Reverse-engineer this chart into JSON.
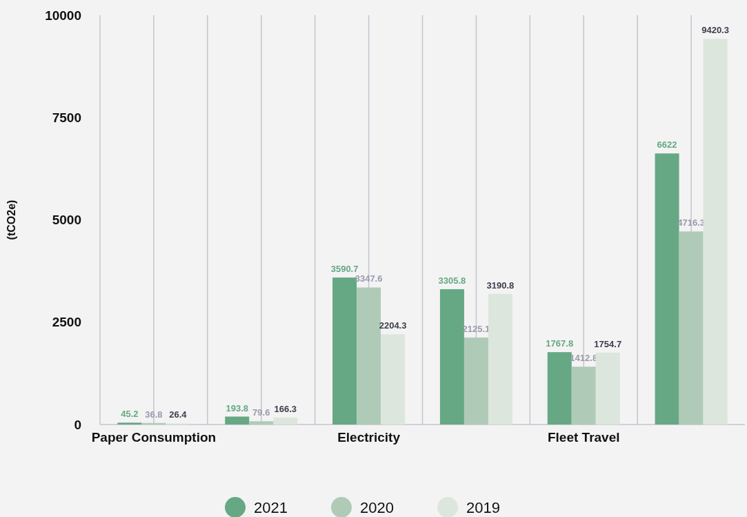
{
  "chart_data": {
    "type": "bar",
    "ylabel": "(tCO2e)",
    "categories": [
      "Paper Consumption",
      null,
      "Electricity",
      null,
      "Fleet Travel",
      null
    ],
    "series": [
      {
        "name": "2021",
        "color": "#66a884",
        "values": [
          45.2,
          193.8,
          3590.7,
          3305.8,
          1767.8,
          6622
        ]
      },
      {
        "name": "2020",
        "color": "#afcbb8",
        "values": [
          36.8,
          79.6,
          3347.6,
          2125.1,
          1412.8,
          4716.3
        ]
      },
      {
        "name": "2019",
        "color": "#dce6dd",
        "values": [
          26.4,
          166.3,
          2204.3,
          3190.8,
          1754.7,
          9420.3
        ]
      }
    ],
    "ylim": [
      0,
      10000
    ],
    "yticks": [
      0,
      2500,
      5000,
      7500,
      10000
    ],
    "grid": "x",
    "legend": "bottom",
    "data_labels": true
  }
}
